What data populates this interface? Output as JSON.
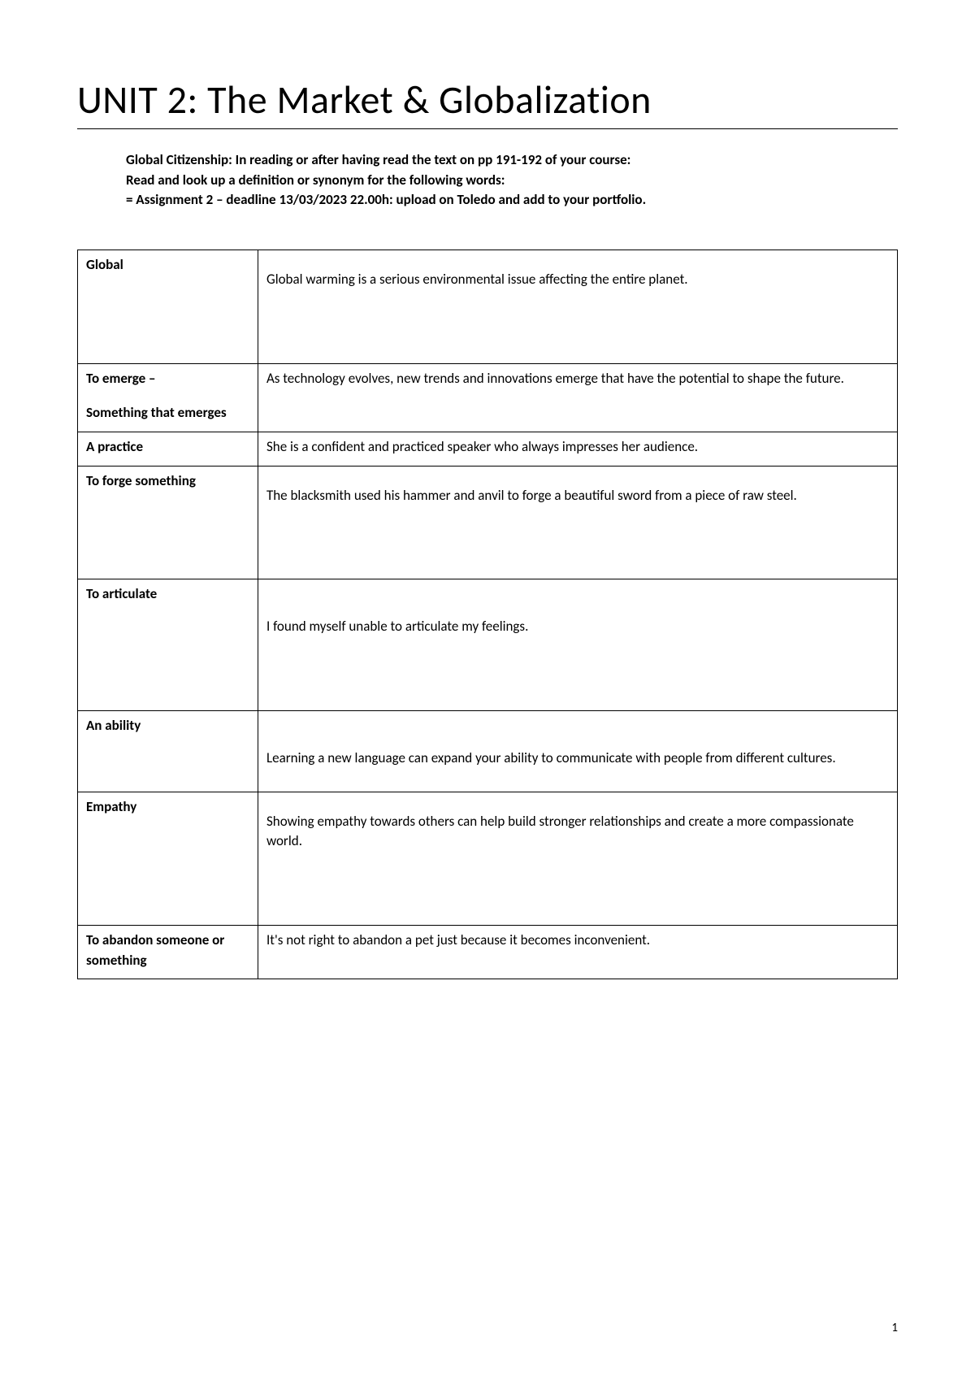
{
  "title": "UNIT 2: The Market & Globalization",
  "instructions": {
    "line1": "Global Citizenship: In reading or after having read the text on pp 191-192 of your course:",
    "line2": "Read and look up a definition or synonym for the following words:",
    "line3": "= Assignment 2 – deadline 13/03/2023 22.00h: upload on Toledo and add to your portfolio."
  },
  "table": {
    "rows": [
      {
        "term": "Global",
        "definition": "Global warming is a serious environmental issue affecting the entire planet.",
        "term_html": "Global",
        "def_prefix_spacer": "spacer-top",
        "def_suffix_spacer": "spacer-bottom"
      },
      {
        "term": "To emerge –",
        "term_sub": "Something that emerges",
        "definition": "As technology evolves, new trends and innovations emerge that have the potential to shape the future.",
        "def_prefix_spacer": "",
        "def_suffix_spacer": ""
      },
      {
        "term": "A practice",
        "definition": "She is a confident and practiced speaker who always impresses her audience.",
        "def_prefix_spacer": "",
        "def_suffix_spacer": ""
      },
      {
        "term": "To forge something",
        "definition": "The blacksmith used his hammer and anvil to forge a beautiful sword from a piece of raw steel.",
        "def_prefix_spacer": "spacer-top",
        "def_suffix_spacer": "spacer-bottom"
      },
      {
        "term": "To articulate",
        "definition": "I found myself unable to articulate my feelings.",
        "def_prefix_spacer": "spacer-med",
        "def_suffix_spacer": "spacer-bottom"
      },
      {
        "term": "An ability",
        "definition": "Learning a new language can expand your ability to communicate with people from different cultures.",
        "def_prefix_spacer": "spacer-med",
        "def_suffix_spacer": "spacer-top"
      },
      {
        "term": "Empathy",
        "definition": "Showing empathy towards others can help build stronger relationships and create a more compassionate world.",
        "def_prefix_spacer": "spacer-top",
        "def_suffix_spacer": "spacer-bottom"
      },
      {
        "term": "To abandon someone or something",
        "definition": "It's not right to abandon a pet just because it becomes inconvenient.",
        "def_prefix_spacer": "",
        "def_suffix_spacer": "spacer-top"
      }
    ]
  },
  "page_number": "1",
  "colors": {
    "text": "#000000",
    "background": "#ffffff",
    "border": "#000000"
  },
  "fonts": {
    "title_family": "Calibri Light",
    "body_family": "Calibri",
    "title_size": 48,
    "body_size": 17,
    "instruction_size": 17
  }
}
